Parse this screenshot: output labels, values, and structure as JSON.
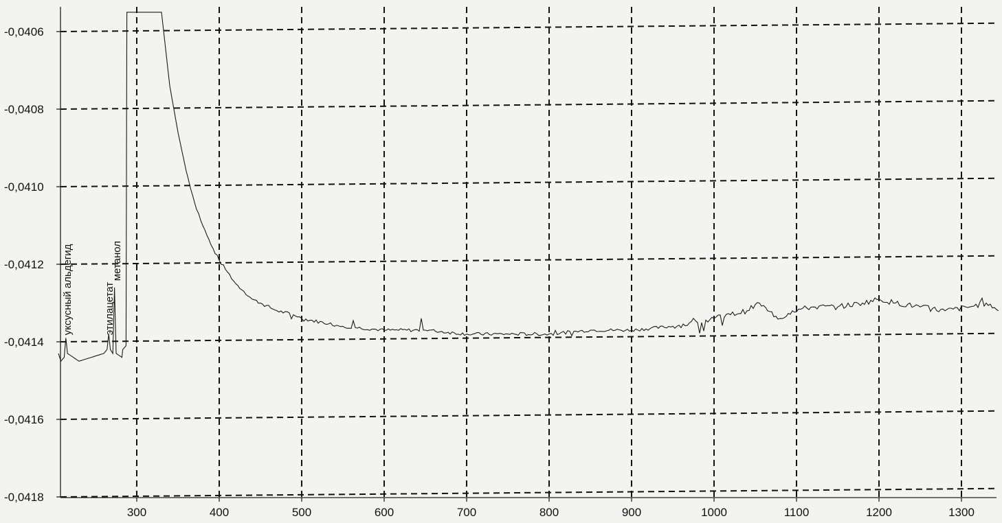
{
  "chart_data": {
    "type": "line",
    "title": "",
    "xlabel": "",
    "ylabel": "",
    "xlim": [
      205,
      1345
    ],
    "ylim": [
      -0.0418,
      -0.04054
    ],
    "grid": true,
    "x_ticks": [
      300,
      400,
      500,
      600,
      700,
      800,
      900,
      1000,
      1100,
      1200,
      1300
    ],
    "x_tick_labels": [
      "300",
      "400",
      "500",
      "600",
      "700",
      "800",
      "900",
      "1000",
      "1100",
      "1200",
      "1300"
    ],
    "y_ticks": [
      -0.0406,
      -0.0408,
      -0.041,
      -0.0412,
      -0.0414,
      -0.0416,
      -0.0418
    ],
    "y_tick_labels": [
      "-0,0406",
      "-0,0408",
      "-0,0410",
      "-0,0412",
      "-0,0414",
      "-0,0416",
      "-0,0418"
    ],
    "annotations": [
      {
        "text": "уксусный альдегид",
        "x": 214,
        "y": -0.04139
      },
      {
        "text": "этилацетат",
        "x": 265,
        "y": -0.04139
      },
      {
        "text": "метанол",
        "x": 274,
        "y": -0.04125
      }
    ],
    "series": [
      {
        "points": [
          [
            205,
            -0.04143
          ],
          [
            208,
            -0.04145
          ],
          [
            212,
            -0.04144
          ],
          [
            214,
            -0.04139
          ],
          [
            216,
            -0.04143
          ],
          [
            230,
            -0.04145
          ],
          [
            245,
            -0.04144
          ],
          [
            260,
            -0.04143
          ],
          [
            264,
            -0.04142
          ],
          [
            266,
            -0.04138
          ],
          [
            268,
            -0.04142
          ],
          [
            271,
            -0.04143
          ],
          [
            273,
            -0.04126
          ],
          [
            275,
            -0.04143
          ],
          [
            282,
            -0.04144
          ],
          [
            283,
            -0.04142
          ],
          [
            287,
            -0.04141
          ],
          [
            288,
            -0.04055
          ],
          [
            330,
            -0.04055
          ],
          [
            340,
            -0.04074
          ],
          [
            350,
            -0.04086
          ],
          [
            360,
            -0.04096
          ],
          [
            370,
            -0.04104
          ],
          [
            380,
            -0.0411
          ],
          [
            390,
            -0.04115
          ],
          [
            400,
            -0.04119
          ],
          [
            410,
            -0.04122
          ],
          [
            420,
            -0.04125
          ],
          [
            430,
            -0.04127
          ],
          [
            440,
            -0.04129
          ],
          [
            450,
            -0.0413
          ],
          [
            470,
            -0.04132
          ],
          [
            490,
            -0.04133
          ],
          [
            500,
            -0.04134
          ],
          [
            550,
            -0.04136
          ],
          [
            600,
            -0.04137
          ],
          [
            650,
            -0.04137
          ],
          [
            700,
            -0.04138
          ],
          [
            750,
            -0.04138
          ],
          [
            800,
            -0.04138
          ],
          [
            850,
            -0.04137
          ],
          [
            900,
            -0.04137
          ],
          [
            950,
            -0.04136
          ],
          [
            980,
            -0.04135
          ],
          [
            1000,
            -0.04134
          ],
          [
            1020,
            -0.04133
          ],
          [
            1040,
            -0.04132
          ],
          [
            1055,
            -0.0413
          ],
          [
            1065,
            -0.04132
          ],
          [
            1080,
            -0.04134
          ],
          [
            1095,
            -0.04132
          ],
          [
            1120,
            -0.04131
          ],
          [
            1150,
            -0.04131
          ],
          [
            1180,
            -0.0413
          ],
          [
            1200,
            -0.04129
          ],
          [
            1220,
            -0.0413
          ],
          [
            1250,
            -0.04131
          ],
          [
            1280,
            -0.04132
          ],
          [
            1310,
            -0.04131
          ],
          [
            1330,
            -0.0413
          ],
          [
            1345,
            -0.04132
          ]
        ]
      }
    ]
  }
}
